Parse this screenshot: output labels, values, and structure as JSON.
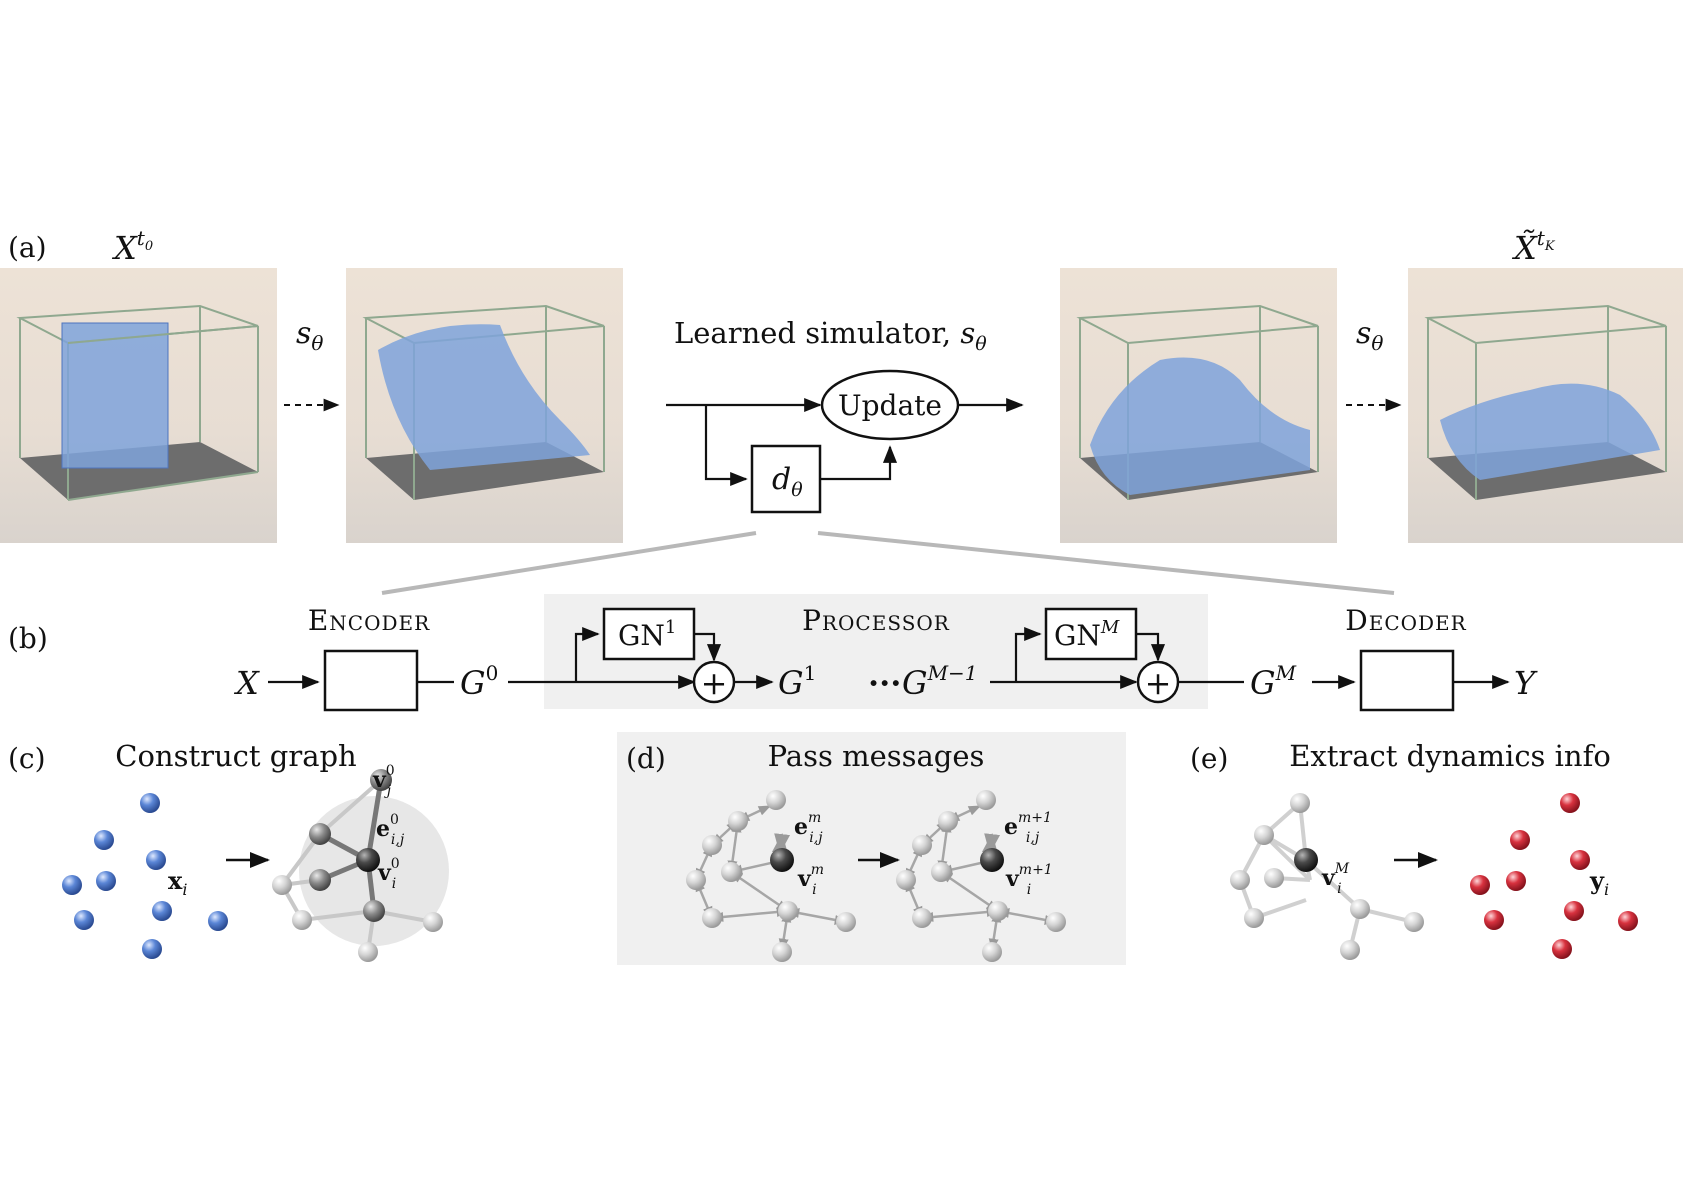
{
  "panels": {
    "a": {
      "tag": "(a)",
      "x_label_base": "X",
      "x_label_sup": "t",
      "x_label_subsup": "0",
      "xt_label_base": "X̃",
      "xt_label_sup": "t",
      "xt_label_subsup": "K",
      "step_label": "s",
      "step_sub": "θ",
      "title": "Learned simulator, ",
      "title_sym": "s",
      "title_sub": "θ",
      "update_label": "Update",
      "d_label": "d",
      "d_sub": "θ"
    },
    "b": {
      "tag": "(b)",
      "encoder": "Encoder",
      "processor": "Processor",
      "decoder": "Decoder",
      "input": "X",
      "output": "Y",
      "g0": "G",
      "g0_sup": "0",
      "g1": "G",
      "g1_sup": "1",
      "gm1": "G",
      "gm1_sup": "M−1",
      "gM": "G",
      "gM_sup": "M",
      "gn1": "GN",
      "gn1_sup": "1",
      "gnM": "GN",
      "gnM_sup": "M",
      "ellipsis": "···",
      "plus": "+"
    },
    "c": {
      "tag": "(c)",
      "title": "Construct graph",
      "x_i": "x",
      "x_i_sub": "i",
      "v_j": "v",
      "v_j_sub": "j",
      "v_j_sup": "0",
      "e_ij": "e",
      "e_ij_sub": "i,j",
      "e_ij_sup": "0",
      "v_i": "v",
      "v_i_sub": "i",
      "v_i_sup": "0"
    },
    "d": {
      "tag": "(d)",
      "title": "Pass messages",
      "e1": "e",
      "e1_sub": "i,j",
      "e1_sup": "m",
      "v1": "v",
      "v1_sub": "i",
      "v1_sup": "m",
      "e2": "e",
      "e2_sub": "i,j",
      "e2_sup": "m+1",
      "v2": "v",
      "v2_sub": "i",
      "v2_sup": "m+1"
    },
    "e": {
      "tag": "(e)",
      "title": "Extract dynamics info",
      "v": "v",
      "v_sub": "i",
      "v_sup": "M",
      "y": "y",
      "y_sub": "i"
    }
  },
  "colors": {
    "particle_blue": "#5b86d6",
    "particle_red": "#d8323f",
    "node_gray": "#cfcfcf",
    "node_dark": "#333333",
    "shade_panel": "#f0f0f0"
  }
}
